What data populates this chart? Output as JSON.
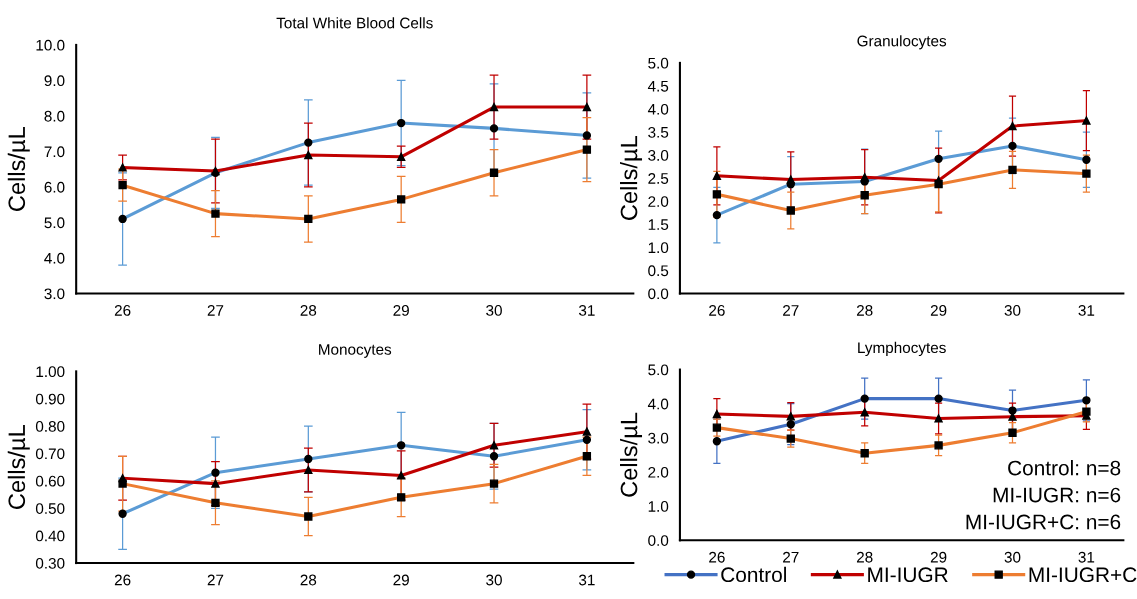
{
  "chart_data": [
    {
      "type": "line",
      "title": "Total White Blood Cells",
      "ylabel": "Cells/µL",
      "categories": [
        "26",
        "27",
        "28",
        "29",
        "30",
        "31"
      ],
      "ylim": [
        3,
        10
      ],
      "yticks": [
        {
          "value": 3,
          "label": "3.0"
        },
        {
          "value": 4,
          "label": "4.0"
        },
        {
          "value": 5,
          "label": "5.0"
        },
        {
          "value": 6,
          "label": "6.0"
        },
        {
          "value": 7,
          "label": "7.0"
        },
        {
          "value": 8,
          "label": "8.0"
        },
        {
          "value": 9,
          "label": "9.0"
        },
        {
          "value": 10,
          "label": "10.0"
        }
      ],
      "series": [
        {
          "color": "#5b9bd5",
          "marker": "circle",
          "values": [
            5.1,
            6.4,
            7.25,
            7.8,
            7.65,
            7.45
          ],
          "errors": [
            1.3,
            1.0,
            1.2,
            1.2,
            1.25,
            1.2
          ]
        },
        {
          "color": "#c00000",
          "marker": "triangle",
          "values": [
            6.55,
            6.45,
            6.9,
            6.85,
            8.25,
            8.25
          ],
          "errors": [
            0.35,
            0.9,
            0.9,
            0.3,
            0.9,
            0.9
          ]
        },
        {
          "color": "#ed7d31",
          "marker": "square",
          "values": [
            6.05,
            5.25,
            5.1,
            5.65,
            6.4,
            7.05
          ],
          "errors": [
            0.45,
            0.65,
            0.65,
            0.65,
            0.65,
            0.9
          ]
        }
      ]
    },
    {
      "type": "line",
      "title": "Granulocytes",
      "ylabel": "Cells/µL",
      "categories": [
        "26",
        "27",
        "28",
        "29",
        "30",
        "31"
      ],
      "ylim": [
        0,
        5
      ],
      "yticks": [
        {
          "value": 0,
          "label": "0.0"
        },
        {
          "value": 0.5,
          "label": "0.5"
        },
        {
          "value": 1,
          "label": "1.0"
        },
        {
          "value": 1.5,
          "label": "1.5"
        },
        {
          "value": 2,
          "label": "2.0"
        },
        {
          "value": 2.5,
          "label": "2.5"
        },
        {
          "value": 3,
          "label": "3.0"
        },
        {
          "value": 3.5,
          "label": "3.5"
        },
        {
          "value": 4,
          "label": "4.0"
        },
        {
          "value": 4.5,
          "label": "4.5"
        },
        {
          "value": 5,
          "label": "5.0"
        }
      ],
      "series": [
        {
          "color": "#5b9bd5",
          "marker": "circle",
          "values": [
            1.7,
            2.37,
            2.43,
            2.92,
            3.2,
            2.9
          ],
          "errors": [
            0.6,
            0.6,
            0.7,
            0.6,
            0.6,
            0.6
          ]
        },
        {
          "color": "#c00000",
          "marker": "triangle",
          "values": [
            2.55,
            2.47,
            2.52,
            2.45,
            3.63,
            3.75
          ],
          "errors": [
            0.63,
            0.6,
            0.6,
            0.7,
            0.65,
            0.65
          ]
        },
        {
          "color": "#ed7d31",
          "marker": "square",
          "values": [
            2.15,
            1.8,
            2.13,
            2.37,
            2.68,
            2.6
          ],
          "errors": [
            0.5,
            0.4,
            0.4,
            0.6,
            0.4,
            0.4
          ]
        }
      ]
    },
    {
      "type": "line",
      "title": "Monocytes",
      "ylabel": "Cells/µL",
      "categories": [
        "26",
        "27",
        "28",
        "29",
        "30",
        "31"
      ],
      "ylim": [
        0.3,
        1.0
      ],
      "yticks": [
        {
          "value": 0.3,
          "label": "0.30"
        },
        {
          "value": 0.4,
          "label": "0.40"
        },
        {
          "value": 0.5,
          "label": "0.50"
        },
        {
          "value": 0.6,
          "label": "0.60"
        },
        {
          "value": 0.7,
          "label": "0.70"
        },
        {
          "value": 0.8,
          "label": "0.80"
        },
        {
          "value": 0.9,
          "label": "0.90"
        },
        {
          "value": 1.0,
          "label": "1.00"
        }
      ],
      "series": [
        {
          "color": "#5b9bd5",
          "marker": "circle",
          "values": [
            0.48,
            0.63,
            0.68,
            0.73,
            0.69,
            0.75
          ],
          "errors": [
            0.13,
            0.13,
            0.12,
            0.12,
            0.12,
            0.11
          ]
        },
        {
          "color": "#c00000",
          "marker": "triangle",
          "values": [
            0.61,
            0.59,
            0.64,
            0.62,
            0.73,
            0.78
          ],
          "errors": [
            0.08,
            0.08,
            0.08,
            0.09,
            0.08,
            0.1
          ]
        },
        {
          "color": "#ed7d31",
          "marker": "square",
          "values": [
            0.59,
            0.52,
            0.47,
            0.54,
            0.59,
            0.69
          ],
          "errors": [
            0.1,
            0.08,
            0.07,
            0.07,
            0.07,
            0.07
          ]
        }
      ]
    },
    {
      "type": "line",
      "title": "Lymphocytes",
      "ylabel": "Cells/µL",
      "categories": [
        "26",
        "27",
        "28",
        "29",
        "30",
        "31"
      ],
      "ylim": [
        0,
        5
      ],
      "yticks": [
        {
          "value": 0,
          "label": "0.0"
        },
        {
          "value": 1,
          "label": "1.0"
        },
        {
          "value": 2,
          "label": "2.0"
        },
        {
          "value": 3,
          "label": "3.0"
        },
        {
          "value": 4,
          "label": "4.0"
        },
        {
          "value": 5,
          "label": "5.0"
        }
      ],
      "legend": "bottom",
      "annotations": [
        "Control: n=8\nMI-IUGR: n=6\nMI-IUGR+C: n=6"
      ],
      "series": [
        {
          "name": "Control",
          "color": "#4472c4",
          "marker": "circle",
          "values": [
            2.9,
            3.4,
            4.15,
            4.15,
            3.8,
            4.1
          ],
          "errors": [
            0.65,
            0.6,
            0.6,
            0.6,
            0.6,
            0.6
          ]
        },
        {
          "name": "MI-IUGR",
          "color": "#c00000",
          "marker": "triangle",
          "values": [
            3.7,
            3.63,
            3.75,
            3.57,
            3.62,
            3.65
          ],
          "errors": [
            0.45,
            0.4,
            0.4,
            0.45,
            0.4,
            0.4
          ]
        },
        {
          "name": "MI-IUGR+C",
          "color": "#ed7d31",
          "marker": "square",
          "values": [
            3.3,
            2.98,
            2.55,
            2.78,
            3.15,
            3.77
          ],
          "errors": [
            0.25,
            0.25,
            0.3,
            0.3,
            0.3,
            0.3
          ]
        }
      ]
    }
  ]
}
